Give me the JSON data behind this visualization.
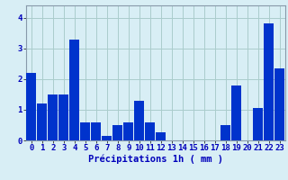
{
  "values": [
    2.2,
    1.2,
    1.5,
    1.5,
    3.3,
    0.6,
    0.6,
    0.15,
    0.5,
    0.6,
    1.3,
    0.6,
    0.25,
    0.0,
    0.0,
    0.0,
    0.0,
    0.0,
    0.5,
    1.8,
    0.0,
    1.05,
    3.8,
    2.35
  ],
  "bar_color": "#0033cc",
  "background_color": "#d8eef5",
  "grid_color": "#aacccc",
  "xlabel": "Précipitations 1h ( mm )",
  "ylim": [
    0,
    4.4
  ],
  "yticks": [
    0,
    1,
    2,
    3,
    4
  ],
  "xlabel_fontsize": 7.5,
  "tick_fontsize": 6.5,
  "tick_color": "#0000bb",
  "spine_color": "#8899aa",
  "bar_width": 0.9
}
